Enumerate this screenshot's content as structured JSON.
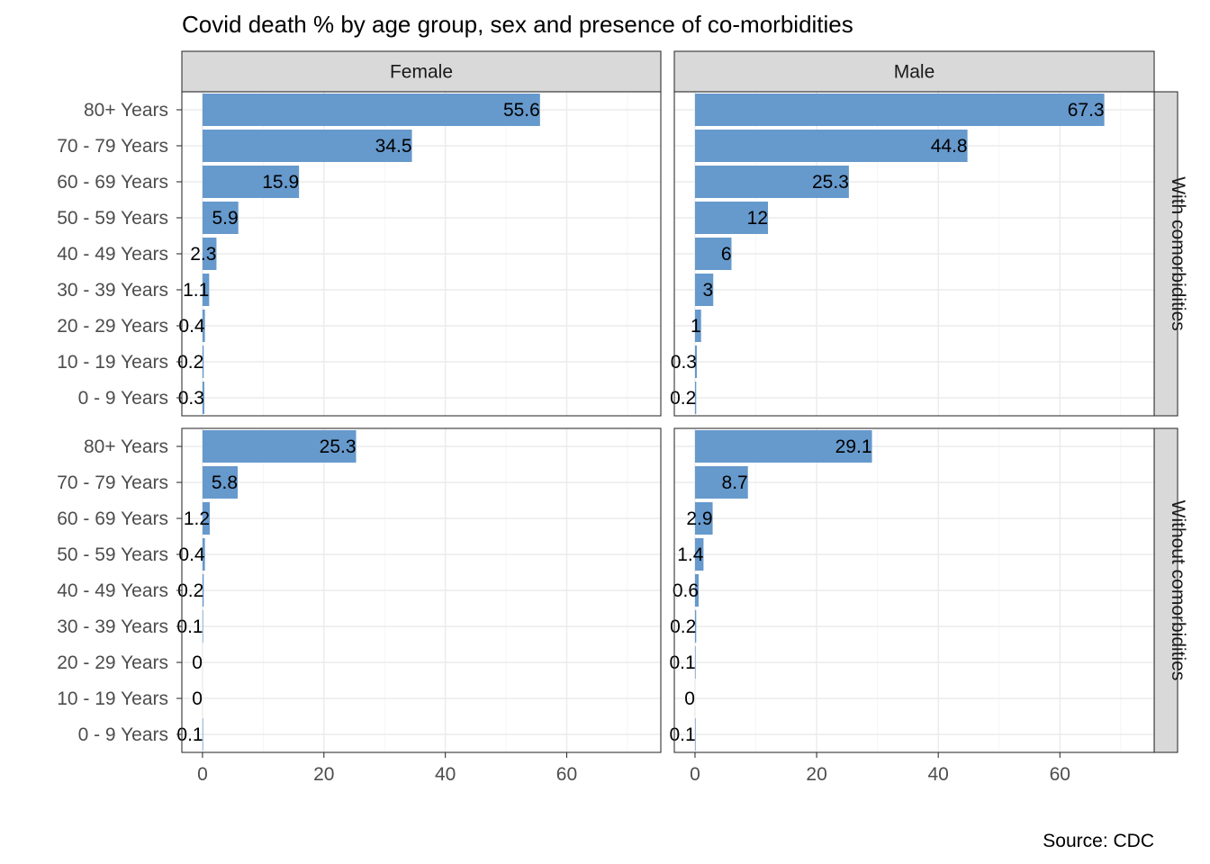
{
  "chart_data": {
    "type": "bar",
    "orientation": "horizontal",
    "title": "Covid death % by age group, sex and presence of co-morbidities",
    "caption": "Source: CDC",
    "xlabel": "",
    "ylabel": "",
    "categories": [
      "80+ Years",
      "70 - 79 Years",
      "60 - 69 Years",
      "50 - 59 Years",
      "40 - 49 Years",
      "30 - 39 Years",
      "20 - 29 Years",
      "10 - 19 Years",
      "0 - 9 Years"
    ],
    "xlim": [
      -3.4,
      75.5
    ],
    "xticks": [
      0,
      20,
      40,
      60
    ],
    "bar_color": "#6699cc",
    "grid": true,
    "facet_columns": [
      "Female",
      "Male"
    ],
    "facet_rows": [
      "With comorbidities",
      "Without comorbidities"
    ],
    "panels": [
      {
        "column": "Female",
        "row": "With comorbidities",
        "values": [
          55.6,
          34.5,
          15.9,
          5.9,
          2.3,
          1.1,
          0.4,
          0.2,
          0.3
        ],
        "labels": [
          "55.6",
          "34.5",
          "15.9",
          "5.9",
          "2.3",
          "1.1",
          "0.4",
          "0.2",
          "0.3"
        ]
      },
      {
        "column": "Male",
        "row": "With comorbidities",
        "values": [
          67.3,
          44.8,
          25.3,
          12,
          6,
          3,
          1,
          0.3,
          0.2
        ],
        "labels": [
          "67.3",
          "44.8",
          "25.3",
          "12",
          "6",
          "3",
          "1",
          "0.3",
          "0.2"
        ]
      },
      {
        "column": "Female",
        "row": "Without comorbidities",
        "values": [
          25.3,
          5.8,
          1.2,
          0.4,
          0.2,
          0.1,
          0,
          0,
          0.1
        ],
        "labels": [
          "25.3",
          "5.8",
          "1.2",
          "0.4",
          "0.2",
          "0.1",
          "0",
          "0",
          "0.1"
        ]
      },
      {
        "column": "Male",
        "row": "Without comorbidities",
        "values": [
          29.1,
          8.7,
          2.9,
          1.4,
          0.6,
          0.2,
          0.1,
          0,
          0.1
        ],
        "labels": [
          "29.1",
          "8.7",
          "2.9",
          "1.4",
          "0.6",
          "0.2",
          "0.1",
          "0",
          "0.1"
        ]
      }
    ]
  }
}
